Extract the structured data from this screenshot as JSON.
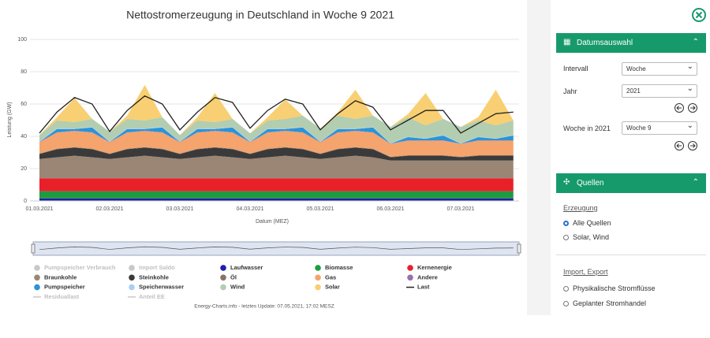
{
  "chart_data": {
    "type": "stacked_area",
    "title": "Nettostromerzeugung in Deutschland in Woche 9 2021",
    "y_label": "Leistung (GW)",
    "x_label": "Datum (MEZ)",
    "footer": "Energy-Charts.info - letztes Update: 07.05.2021, 17:02 MESZ",
    "categories": [
      "01.03.2021",
      null,
      null,
      null,
      "02.03.2021",
      null,
      null,
      null,
      "03.03.2021",
      null,
      null,
      null,
      "04.03.2021",
      null,
      null,
      null,
      "05.03.2021",
      null,
      null,
      null,
      "06.03.2021",
      null,
      null,
      null,
      "07.03.2021",
      null,
      null,
      null
    ],
    "ylim": [
      0,
      100
    ],
    "yticks": [
      0,
      20,
      40,
      60,
      80,
      100
    ],
    "grid": true,
    "series": [
      {
        "name": "Laufwasser",
        "color": "#1f1fa8",
        "kind": "area",
        "values": [
          1.5,
          1.5,
          1.5,
          1.5,
          1.5,
          1.5,
          1.5,
          1.5,
          1.5,
          1.5,
          1.5,
          1.5,
          1.5,
          1.5,
          1.5,
          1.5,
          1.5,
          1.5,
          1.5,
          1.5,
          1.5,
          1.5,
          1.5,
          1.5,
          1.5,
          1.5,
          1.5,
          1.5
        ]
      },
      {
        "name": "Biomasse",
        "color": "#1e9b40",
        "kind": "area",
        "values": [
          4.5,
          4.5,
          4.5,
          4.5,
          4.5,
          4.5,
          4.5,
          4.5,
          4.5,
          4.5,
          4.5,
          4.5,
          4.5,
          4.5,
          4.5,
          4.5,
          4.5,
          4.5,
          4.5,
          4.5,
          4.5,
          4.5,
          4.5,
          4.5,
          4.5,
          4.5,
          4.5,
          4.5
        ]
      },
      {
        "name": "Kernenergie",
        "color": "#e8202a",
        "kind": "area",
        "values": [
          8,
          8,
          8,
          8,
          8,
          8,
          8,
          8,
          8,
          8,
          8,
          8,
          8,
          8,
          8,
          8,
          8,
          8,
          8,
          8,
          8,
          8,
          8,
          8,
          8,
          8,
          8,
          8
        ]
      },
      {
        "name": "Braunkohle",
        "color": "#9b8675",
        "kind": "area",
        "values": [
          12,
          13,
          14,
          13,
          12,
          13,
          14,
          13,
          12,
          13,
          14,
          13,
          12,
          13,
          14,
          13,
          12,
          13,
          14,
          13,
          11,
          11,
          11,
          11,
          11,
          11,
          11,
          11
        ]
      },
      {
        "name": "Steinkohle",
        "color": "#3a3a3a",
        "kind": "area",
        "values": [
          3,
          5,
          5,
          5,
          3,
          5,
          5,
          5,
          3,
          5,
          5,
          5,
          3,
          5,
          5,
          5,
          3,
          5,
          5,
          5,
          2,
          3,
          3,
          3,
          2,
          3,
          3,
          3
        ]
      },
      {
        "name": "Öl",
        "color": "#8a7360",
        "kind": "area",
        "values": [
          0.3,
          0.3,
          0.3,
          0.3,
          0.3,
          0.3,
          0.3,
          0.3,
          0.3,
          0.3,
          0.3,
          0.3,
          0.3,
          0.3,
          0.3,
          0.3,
          0.3,
          0.3,
          0.3,
          0.3,
          0.3,
          0.3,
          0.3,
          0.3,
          0.3,
          0.3,
          0.3,
          0.3
        ]
      },
      {
        "name": "Gas",
        "color": "#f4a46c",
        "kind": "area",
        "values": [
          7,
          10,
          10,
          10,
          7,
          10,
          10,
          10,
          7,
          10,
          10,
          10,
          7,
          10,
          10,
          10,
          7,
          10,
          10,
          10,
          8,
          9,
          9,
          9,
          8,
          9,
          9,
          9
        ]
      },
      {
        "name": "Andere",
        "color": "#9a6fb0",
        "kind": "area",
        "values": [
          0.2,
          0.2,
          0.2,
          0.2,
          0.2,
          0.2,
          0.2,
          0.2,
          0.2,
          0.2,
          0.2,
          0.2,
          0.2,
          0.2,
          0.2,
          0.2,
          0.2,
          0.2,
          0.2,
          0.2,
          0.2,
          0.2,
          0.2,
          0.2,
          0.2,
          0.2,
          0.2,
          0.2
        ]
      },
      {
        "name": "Pumpspeicher",
        "color": "#2a94d6",
        "kind": "area",
        "values": [
          0,
          2,
          1,
          3,
          0,
          2,
          1,
          3,
          0,
          2,
          1,
          3,
          0,
          2,
          1,
          3,
          0,
          2,
          1,
          3,
          0,
          2,
          1,
          3,
          0,
          2,
          1,
          3
        ]
      },
      {
        "name": "Speicherwasser",
        "color": "#a9cff0",
        "kind": "area",
        "values": [
          0.3,
          0.3,
          0.3,
          0.3,
          0.3,
          0.3,
          0.3,
          0.3,
          0.3,
          0.3,
          0.3,
          0.3,
          0.3,
          0.3,
          0.3,
          0.3,
          0.3,
          0.3,
          0.3,
          0.3,
          0.3,
          0.3,
          0.3,
          0.3,
          0.3,
          0.3,
          0.3,
          0.3
        ]
      },
      {
        "name": "Wind",
        "color": "#b3cdb0",
        "kind": "area",
        "values": [
          4,
          5,
          4,
          5,
          6,
          6,
          5,
          6,
          4,
          5,
          4,
          5,
          5,
          5,
          6,
          7,
          8,
          8,
          6,
          7,
          10,
          12,
          8,
          10,
          10,
          10,
          8,
          9
        ]
      },
      {
        "name": "Solar",
        "color": "#f8cf72",
        "kind": "area",
        "values": [
          0,
          2,
          15,
          0,
          0,
          2,
          22,
          0,
          0,
          2,
          18,
          0,
          0,
          2,
          12,
          0,
          0,
          2,
          18,
          0,
          0,
          2,
          20,
          0,
          0,
          2,
          22,
          0
        ]
      },
      {
        "name": "Last",
        "color": "#222222",
        "kind": "line",
        "values": [
          42,
          55,
          64,
          60,
          43,
          56,
          65,
          60,
          44,
          55,
          64,
          61,
          45,
          56,
          63,
          60,
          44,
          54,
          62,
          58,
          44,
          50,
          56,
          56,
          42,
          48,
          54,
          55
        ]
      }
    ],
    "hidden_series": [
      {
        "name": "Pumpspeicher Verbrauch",
        "marker": "dot"
      },
      {
        "name": "Import Saldo",
        "marker": "dot"
      },
      {
        "name": "Residuallast",
        "marker": "line"
      },
      {
        "name": "Anteil EE",
        "marker": "line"
      }
    ]
  },
  "sidebar": {
    "date_panel": {
      "title": "Datumsauswahl",
      "fields": [
        {
          "label": "Intervall",
          "value": "Woche"
        },
        {
          "label": "Jahr",
          "value": "2021"
        },
        {
          "label": "Woche in 2021",
          "value": "Woche 9"
        }
      ]
    },
    "sources_panel": {
      "title": "Quellen",
      "groups": [
        {
          "title": "Erzeugung",
          "options": [
            "Alle Quellen",
            "Solar, Wind"
          ],
          "selected": 0
        },
        {
          "title": "Import, Export",
          "options": [
            "Physikalische Stromflüsse",
            "Geplanter Stromhandel"
          ]
        }
      ]
    }
  }
}
